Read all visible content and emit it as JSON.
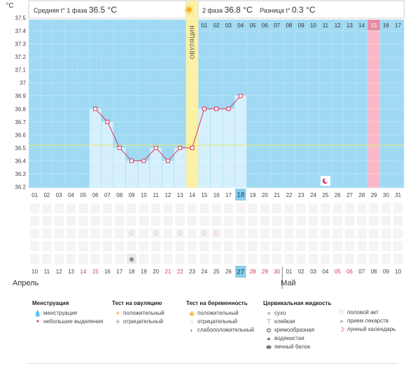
{
  "header": {
    "phase1_label": "Средняя t° 1 фаза",
    "phase1_value": "36.5 °C",
    "phase2_label": "2 фаза",
    "phase2_value": "36.8 °C",
    "diff_label": "Разница t°",
    "diff_value": "0.3 °C",
    "unit": "°C"
  },
  "chart_data": {
    "type": "line",
    "title": "",
    "xlabel": "",
    "ylabel": "°C",
    "ylim": [
      36.2,
      37.6
    ],
    "y_ticks": [
      "37.5",
      "37.4",
      "37.3",
      "37.2",
      "37.1",
      "37",
      "36.9",
      "36.8",
      "36.7",
      "36.6",
      "36.5",
      "36.4",
      "36.3",
      "36.2"
    ],
    "coverline": 36.52,
    "ovulation_label": "ОВУЛЯЦИЯ",
    "cycle_days": [
      "",
      "",
      "",
      "",
      "",
      "",
      "",
      "",
      "",
      "",
      "",
      "",
      "",
      "",
      "01",
      "02",
      "03",
      "04",
      "05",
      "06",
      "07",
      "08",
      "09",
      "10",
      "11",
      "12",
      "13",
      "14",
      "15",
      "16",
      "17"
    ],
    "dates_top": [
      "01",
      "02",
      "03",
      "04",
      "05",
      "06",
      "07",
      "08",
      "09",
      "10",
      "11",
      "12",
      "13",
      "14",
      "15",
      "16",
      "17",
      "18",
      "19",
      "20",
      "21",
      "22",
      "23",
      "24",
      "25",
      "26",
      "27",
      "28",
      "29",
      "30",
      "31"
    ],
    "temperatures": [
      null,
      null,
      null,
      null,
      null,
      36.8,
      36.7,
      36.5,
      36.4,
      36.4,
      36.5,
      36.4,
      36.5,
      36.5,
      36.8,
      36.8,
      36.8,
      36.9,
      null,
      null,
      null,
      null,
      null,
      null,
      null,
      null,
      null,
      null,
      null,
      null,
      null
    ],
    "ovulation_index": 13,
    "highlight_index": 28,
    "today_index": 17,
    "lunar_index": 24,
    "intercourse_indices": [
      8,
      10,
      12,
      14,
      15
    ],
    "discharge_index": 8,
    "dates_bottom": [
      "10",
      "11",
      "12",
      "13",
      "14",
      "15",
      "16",
      "17",
      "18",
      "19",
      "20",
      "21",
      "22",
      "23",
      "24",
      "25",
      "26",
      "27",
      "28",
      "29",
      "30",
      "01",
      "02",
      "03",
      "04",
      "05",
      "06",
      "07",
      "08",
      "09",
      "10"
    ],
    "weekend_indices": [
      4,
      5,
      11,
      12,
      18,
      19,
      20,
      25,
      26
    ]
  },
  "months": {
    "left": "Апрель",
    "right": "Май"
  },
  "legend": {
    "menstruation": {
      "title": "Менструация",
      "items": [
        {
          "icon": "drop-icon",
          "label": "менструация"
        },
        {
          "icon": "small-drop-icon",
          "label": "небольшие выделения"
        }
      ]
    },
    "ovulation_test": {
      "title": "Тест на овуляцию",
      "items": [
        {
          "icon": "sun-positive-icon",
          "label": "положительный"
        },
        {
          "icon": "sun-negative-icon",
          "label": "отрицательный"
        }
      ]
    },
    "pregnancy_test": {
      "title": "Тест на беременность",
      "items": [
        {
          "icon": "test-positive-icon",
          "label": "положительный"
        },
        {
          "icon": "test-negative-icon",
          "label": "отрицательный"
        },
        {
          "icon": "test-weak-icon",
          "label": "слабоположительный"
        }
      ]
    },
    "cervical": {
      "title": "Цервикальная жидкость",
      "items": [
        {
          "icon": "cross-icon",
          "label": "сухо"
        },
        {
          "icon": "sticky-icon",
          "label": "клейкая"
        },
        {
          "icon": "creamy-icon",
          "label": "кремообразная"
        },
        {
          "icon": "watery-icon",
          "label": "водянистая"
        },
        {
          "icon": "eggwhite-icon",
          "label": "яичный белок"
        }
      ]
    },
    "other": {
      "items": [
        {
          "icon": "heart-icon",
          "label": "половой акт"
        },
        {
          "icon": "pill-icon",
          "label": "прием лекарств"
        },
        {
          "icon": "moon-icon",
          "label": "лунный календарь"
        }
      ]
    }
  },
  "colors": {
    "plot_bg": "#9fd9f3",
    "bar_fill": "#d5f0fc",
    "ovulation": "#fbf0a4",
    "highlight": "#f8b8c8",
    "line": "#d8375a",
    "coverline": "#e7ee7a",
    "today": "#8ccde8",
    "weekend": "#d8375a"
  }
}
